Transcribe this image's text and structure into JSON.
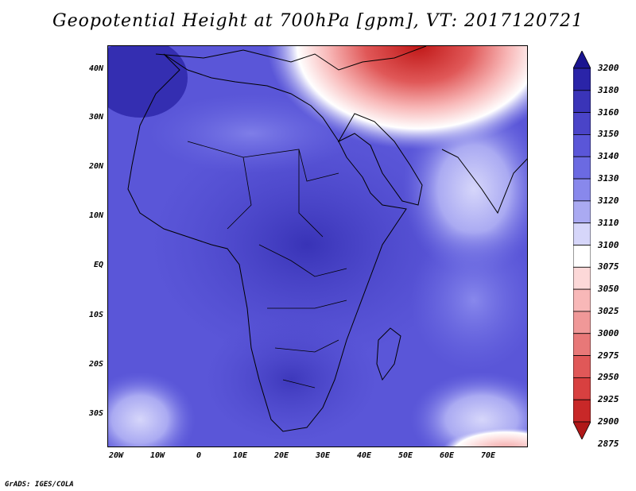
{
  "title": "Geopotential Height at 700hPa [gpm], VT: 2017120721",
  "credit": "GrADS: IGES/COLA",
  "map": {
    "lat_labels": [
      "40N",
      "30N",
      "20N",
      "10N",
      "EQ",
      "10S",
      "20S",
      "30S"
    ],
    "lon_labels": [
      "20W",
      "10W",
      "0",
      "10E",
      "20E",
      "30E",
      "40E",
      "50E",
      "60E",
      "70E"
    ]
  },
  "colorbar": {
    "levels": [
      "3200",
      "3180",
      "3160",
      "3150",
      "3140",
      "3130",
      "3120",
      "3110",
      "3100",
      "3075",
      "3050",
      "3025",
      "3000",
      "2975",
      "2950",
      "2925",
      "2900",
      "2875"
    ],
    "colors": [
      "#1a1490",
      "#2a24a8",
      "#3a34b8",
      "#4a44c8",
      "#5a56d8",
      "#6b6ae2",
      "#8888ec",
      "#aaaaf2",
      "#d6d6fa",
      "#ffffff",
      "#fcd8d8",
      "#f8b8b8",
      "#f09898",
      "#e87878",
      "#e05858",
      "#d84040",
      "#c82828",
      "#b01818"
    ]
  }
}
